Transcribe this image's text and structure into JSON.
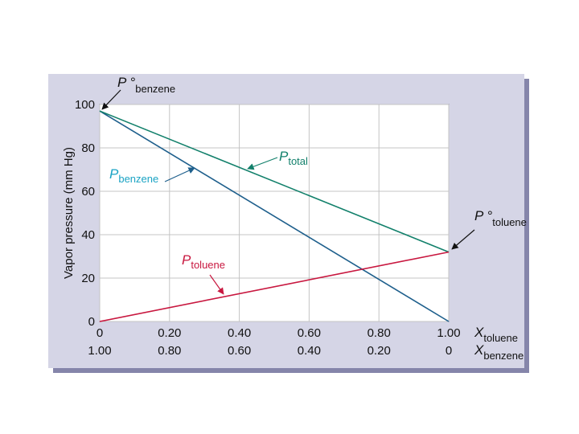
{
  "chart_data": {
    "type": "line",
    "ylabel": "Vapor pressure (mm Hg)",
    "ylim": [
      0,
      100
    ],
    "yticks": [
      0,
      20,
      40,
      60,
      80,
      100
    ],
    "x": [
      0,
      1.0
    ],
    "x_ticks_toluene": [
      "0",
      "0.20",
      "0.40",
      "0.60",
      "0.80",
      "1.00"
    ],
    "x_ticks_benzene": [
      "1.00",
      "0.80",
      "0.60",
      "0.40",
      "0.20",
      "0"
    ],
    "xlabel_toluene": {
      "main": "X",
      "sub": "toluene"
    },
    "xlabel_benzene": {
      "main": "X",
      "sub": "benzene"
    },
    "series": [
      {
        "name": "P benzene",
        "main": "P",
        "sub": "benzene",
        "values": [
          97,
          0
        ],
        "color": "#1e5f8c",
        "label_color": "#1aa3c4"
      },
      {
        "name": "P total",
        "main": "P",
        "sub": "total",
        "values": [
          97,
          32
        ],
        "color": "#12806b",
        "label_color": "#12806b"
      },
      {
        "name": "P toluene",
        "main": "P",
        "sub": "toluene",
        "values": [
          0,
          32
        ],
        "color": "#c8173f",
        "label_color": "#c8173f"
      }
    ],
    "annotations": [
      {
        "main": "P °",
        "sub": "benzene",
        "x": 0,
        "y": 97
      },
      {
        "main": "P °",
        "sub": "toluene",
        "x": 1.0,
        "y": 32
      }
    ]
  },
  "colors": {
    "panel": "#d5d5e6",
    "shadow": "#8585aa",
    "grid": "#c4c4c4",
    "plot_bg": "#ffffff"
  }
}
